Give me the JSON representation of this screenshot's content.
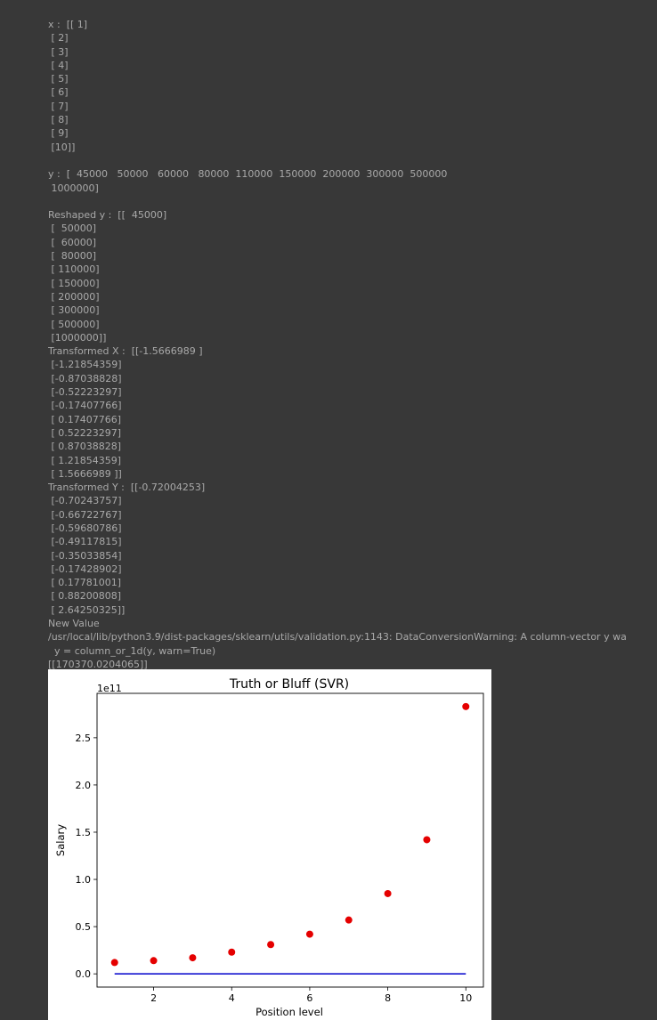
{
  "output": {
    "x_lines": [
      "x :  [[ 1]",
      " [ 2]",
      " [ 3]",
      " [ 4]",
      " [ 5]",
      " [ 6]",
      " [ 7]",
      " [ 8]",
      " [ 9]",
      " [10]]"
    ],
    "y_lines": [
      "y :  [  45000   50000   60000   80000  110000  150000  200000  300000  500000",
      " 1000000]"
    ],
    "reshaped_y_lines": [
      "Reshaped y :  [[  45000]",
      " [  50000]",
      " [  60000]",
      " [  80000]",
      " [ 110000]",
      " [ 150000]",
      " [ 200000]",
      " [ 300000]",
      " [ 500000]",
      " [1000000]]"
    ],
    "transformed_x_lines": [
      "Transformed X :  [[-1.5666989 ]",
      " [-1.21854359]",
      " [-0.87038828]",
      " [-0.52223297]",
      " [-0.17407766]",
      " [ 0.17407766]",
      " [ 0.52223297]",
      " [ 0.87038828]",
      " [ 1.21854359]",
      " [ 1.5666989 ]]"
    ],
    "transformed_y_lines": [
      "Transformed Y :  [[-0.72004253]",
      " [-0.70243757]",
      " [-0.66722767]",
      " [-0.59680786]",
      " [-0.49117815]",
      " [-0.35033854]",
      " [-0.17428902]",
      " [ 0.17781001]",
      " [ 0.88200808]",
      " [ 2.64250325]]"
    ],
    "new_value_lines": [
      "New Value",
      "/usr/local/lib/python3.9/dist-packages/sklearn/utils/validation.py:1143: DataConversionWarning: A column-vector y wa",
      "  y = column_or_1d(y, warn=True)",
      "[[170370.0204065]]"
    ]
  },
  "chart_data": {
    "type": "scatter",
    "title": "Truth or Bluff (SVR)",
    "xlabel": "Position level",
    "ylabel": "Salary",
    "offset_label": "1e11",
    "xlim": [
      0.55,
      10.45
    ],
    "ylim": [
      -0.14,
      2.97
    ],
    "xticks": [
      2,
      4,
      6,
      8,
      10
    ],
    "xtick_labels": [
      "2",
      "4",
      "6",
      "8",
      "10"
    ],
    "yticks": [
      0.0,
      0.5,
      1.0,
      1.5,
      2.0,
      2.5
    ],
    "ytick_labels": [
      "0.0",
      "0.5",
      "1.0",
      "1.5",
      "2.0",
      "2.5"
    ],
    "grid": false,
    "series": [
      {
        "kind": "scatter",
        "color": "#e50000",
        "x": [
          1,
          2,
          3,
          4,
          5,
          6,
          7,
          8,
          9,
          10
        ],
        "y": [
          0.12,
          0.14,
          0.17,
          0.23,
          0.31,
          0.42,
          0.57,
          0.85,
          1.42,
          2.83
        ]
      },
      {
        "kind": "line",
        "color": "#0000cc",
        "x": [
          1,
          2,
          3,
          4,
          5,
          6,
          7,
          8,
          9,
          10
        ],
        "y": [
          0.0,
          0.0,
          0.0,
          0.0,
          0.0,
          0.0,
          0.0,
          0.0,
          0.0,
          0.0
        ]
      }
    ]
  }
}
